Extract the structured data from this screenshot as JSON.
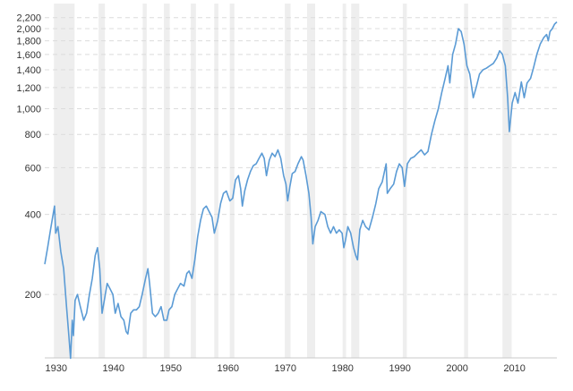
{
  "chart_data": {
    "type": "line",
    "title": "",
    "xlabel": "",
    "ylabel": "",
    "scale": "log",
    "grid": true,
    "xlim": [
      1928,
      2017.4
    ],
    "ylim": [
      120,
      2300
    ],
    "color": "#5b9bd5",
    "band_color": "#eeeeee",
    "x_ticks": [
      1930,
      1940,
      1950,
      1960,
      1970,
      1980,
      1990,
      2000,
      2010
    ],
    "x_tick_labels": [
      "1930",
      "1940",
      "1950",
      "1960",
      "1970",
      "1980",
      "1990",
      "2000",
      "2010"
    ],
    "y_ticks": [
      200,
      400,
      600,
      800,
      1000,
      1200,
      1400,
      1600,
      1800,
      2000,
      2200
    ],
    "y_tick_labels": [
      "200",
      "400",
      "600",
      "800",
      "1,000",
      "1,200",
      "1,400",
      "1,600",
      "1,800",
      "2,000",
      "2,200"
    ],
    "recession_bands": [
      [
        1929.6,
        1933.2
      ],
      [
        1937.4,
        1938.5
      ],
      [
        1945.1,
        1945.8
      ],
      [
        1948.8,
        1949.8
      ],
      [
        1953.5,
        1954.4
      ],
      [
        1957.6,
        1958.3
      ],
      [
        1960.3,
        1961.1
      ],
      [
        1969.9,
        1970.9
      ],
      [
        1973.8,
        1975.2
      ],
      [
        1980.0,
        1980.6
      ],
      [
        1981.5,
        1982.9
      ],
      [
        1990.5,
        1991.2
      ],
      [
        2001.2,
        2001.9
      ],
      [
        2007.9,
        2009.5
      ]
    ],
    "series": [
      {
        "values": [
          [
            1928.0,
            260
          ],
          [
            1928.5,
            300
          ],
          [
            1929.0,
            350
          ],
          [
            1929.7,
            430
          ],
          [
            1929.9,
            340
          ],
          [
            1930.3,
            360
          ],
          [
            1930.8,
            290
          ],
          [
            1931.3,
            250
          ],
          [
            1931.8,
            180
          ],
          [
            1932.2,
            140
          ],
          [
            1932.5,
            115
          ],
          [
            1932.8,
            160
          ],
          [
            1933.0,
            140
          ],
          [
            1933.3,
            190
          ],
          [
            1933.7,
            200
          ],
          [
            1934.2,
            180
          ],
          [
            1934.8,
            160
          ],
          [
            1935.3,
            170
          ],
          [
            1935.8,
            200
          ],
          [
            1936.3,
            230
          ],
          [
            1936.8,
            280
          ],
          [
            1937.2,
            300
          ],
          [
            1937.6,
            250
          ],
          [
            1938.0,
            170
          ],
          [
            1938.4,
            190
          ],
          [
            1938.9,
            220
          ],
          [
            1939.4,
            210
          ],
          [
            1939.9,
            200
          ],
          [
            1940.3,
            170
          ],
          [
            1940.8,
            185
          ],
          [
            1941.3,
            165
          ],
          [
            1941.8,
            160
          ],
          [
            1942.2,
            145
          ],
          [
            1942.5,
            142
          ],
          [
            1943.0,
            170
          ],
          [
            1943.5,
            175
          ],
          [
            1944.0,
            175
          ],
          [
            1944.5,
            180
          ],
          [
            1945.0,
            200
          ],
          [
            1945.6,
            230
          ],
          [
            1946.0,
            250
          ],
          [
            1946.3,
            220
          ],
          [
            1946.8,
            170
          ],
          [
            1947.3,
            165
          ],
          [
            1947.8,
            170
          ],
          [
            1948.3,
            180
          ],
          [
            1948.8,
            160
          ],
          [
            1949.3,
            160
          ],
          [
            1949.7,
            175
          ],
          [
            1950.2,
            180
          ],
          [
            1950.7,
            200
          ],
          [
            1951.2,
            210
          ],
          [
            1951.7,
            220
          ],
          [
            1952.3,
            215
          ],
          [
            1952.8,
            240
          ],
          [
            1953.2,
            245
          ],
          [
            1953.7,
            230
          ],
          [
            1954.2,
            270
          ],
          [
            1954.7,
            330
          ],
          [
            1955.2,
            380
          ],
          [
            1955.7,
            420
          ],
          [
            1956.2,
            430
          ],
          [
            1956.7,
            410
          ],
          [
            1957.2,
            390
          ],
          [
            1957.6,
            340
          ],
          [
            1958.2,
            380
          ],
          [
            1958.7,
            440
          ],
          [
            1959.2,
            480
          ],
          [
            1959.7,
            490
          ],
          [
            1960.3,
            450
          ],
          [
            1960.8,
            460
          ],
          [
            1961.3,
            540
          ],
          [
            1961.8,
            560
          ],
          [
            1962.2,
            500
          ],
          [
            1962.5,
            430
          ],
          [
            1962.9,
            490
          ],
          [
            1963.4,
            540
          ],
          [
            1963.9,
            580
          ],
          [
            1964.4,
            610
          ],
          [
            1964.9,
            620
          ],
          [
            1965.4,
            650
          ],
          [
            1965.9,
            680
          ],
          [
            1966.3,
            650
          ],
          [
            1966.7,
            560
          ],
          [
            1967.2,
            640
          ],
          [
            1967.7,
            680
          ],
          [
            1968.2,
            660
          ],
          [
            1968.7,
            700
          ],
          [
            1969.2,
            650
          ],
          [
            1969.7,
            560
          ],
          [
            1970.1,
            520
          ],
          [
            1970.4,
            450
          ],
          [
            1970.8,
            510
          ],
          [
            1971.2,
            570
          ],
          [
            1971.7,
            580
          ],
          [
            1972.2,
            620
          ],
          [
            1972.8,
            660
          ],
          [
            1973.1,
            640
          ],
          [
            1973.6,
            560
          ],
          [
            1974.1,
            480
          ],
          [
            1974.5,
            390
          ],
          [
            1974.8,
            310
          ],
          [
            1975.2,
            360
          ],
          [
            1975.7,
            380
          ],
          [
            1976.2,
            410
          ],
          [
            1976.9,
            400
          ],
          [
            1977.4,
            360
          ],
          [
            1977.9,
            340
          ],
          [
            1978.4,
            360
          ],
          [
            1978.9,
            340
          ],
          [
            1979.4,
            350
          ],
          [
            1979.9,
            340
          ],
          [
            1980.2,
            300
          ],
          [
            1980.5,
            320
          ],
          [
            1980.9,
            360
          ],
          [
            1981.4,
            340
          ],
          [
            1981.9,
            300
          ],
          [
            1982.3,
            280
          ],
          [
            1982.6,
            270
          ],
          [
            1983.0,
            350
          ],
          [
            1983.5,
            380
          ],
          [
            1984.0,
            360
          ],
          [
            1984.6,
            350
          ],
          [
            1985.2,
            390
          ],
          [
            1985.8,
            440
          ],
          [
            1986.3,
            500
          ],
          [
            1986.9,
            530
          ],
          [
            1987.6,
            620
          ],
          [
            1987.8,
            480
          ],
          [
            1988.3,
            500
          ],
          [
            1988.9,
            520
          ],
          [
            1989.4,
            580
          ],
          [
            1989.9,
            620
          ],
          [
            1990.4,
            600
          ],
          [
            1990.8,
            510
          ],
          [
            1991.3,
            620
          ],
          [
            1991.9,
            650
          ],
          [
            1992.5,
            660
          ],
          [
            1993.1,
            680
          ],
          [
            1993.7,
            700
          ],
          [
            1994.3,
            670
          ],
          [
            1994.9,
            690
          ],
          [
            1995.5,
            800
          ],
          [
            1996.1,
            900
          ],
          [
            1996.7,
            1000
          ],
          [
            1997.3,
            1150
          ],
          [
            1997.9,
            1300
          ],
          [
            1998.4,
            1450
          ],
          [
            1998.7,
            1250
          ],
          [
            1999.2,
            1600
          ],
          [
            1999.7,
            1750
          ],
          [
            2000.2,
            2000
          ],
          [
            2000.7,
            1950
          ],
          [
            2001.2,
            1750
          ],
          [
            2001.7,
            1450
          ],
          [
            2002.2,
            1350
          ],
          [
            2002.8,
            1100
          ],
          [
            2003.3,
            1200
          ],
          [
            2003.9,
            1350
          ],
          [
            2004.5,
            1400
          ],
          [
            2005.1,
            1420
          ],
          [
            2005.7,
            1450
          ],
          [
            2006.3,
            1480
          ],
          [
            2006.9,
            1550
          ],
          [
            2007.4,
            1650
          ],
          [
            2007.9,
            1600
          ],
          [
            2008.4,
            1450
          ],
          [
            2008.8,
            1100
          ],
          [
            2009.1,
            820
          ],
          [
            2009.6,
            1050
          ],
          [
            2010.1,
            1150
          ],
          [
            2010.6,
            1050
          ],
          [
            2011.2,
            1260
          ],
          [
            2011.7,
            1100
          ],
          [
            2012.2,
            1250
          ],
          [
            2012.8,
            1300
          ],
          [
            2013.3,
            1420
          ],
          [
            2013.9,
            1600
          ],
          [
            2014.5,
            1750
          ],
          [
            2015.1,
            1850
          ],
          [
            2015.6,
            1900
          ],
          [
            2015.9,
            1800
          ],
          [
            2016.2,
            1950
          ],
          [
            2016.6,
            2000
          ],
          [
            2017.0,
            2080
          ],
          [
            2017.4,
            2120
          ]
        ]
      }
    ]
  }
}
